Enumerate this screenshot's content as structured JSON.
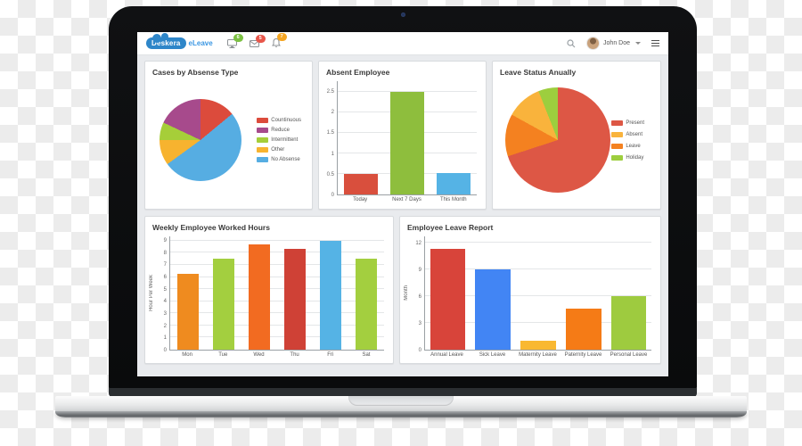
{
  "header": {
    "brand": "Deskera",
    "product": "eLeave",
    "badges": {
      "messages": "6",
      "mail": "5",
      "notifications": "7"
    },
    "user_name": "John Doe"
  },
  "chart_data": [
    {
      "type": "pie",
      "title": "Cases by Absense Type",
      "legend_position": "right",
      "slices_clockwise_from_top": [
        {
          "label": "Countinuous",
          "value": 14,
          "color": "#dc4b3c"
        },
        {
          "label": "No Absense",
          "value": 51,
          "color": "#56ade2"
        },
        {
          "label": "Other",
          "value": 10,
          "color": "#f7b32f"
        },
        {
          "label": "Intermittent",
          "value": 7,
          "color": "#a6ce39"
        },
        {
          "label": "Reduce",
          "value": 18,
          "color": "#a74a8c"
        }
      ],
      "legend_order": [
        "Countinuous",
        "Reduce",
        "Intermittent",
        "Other",
        "No Absense"
      ]
    },
    {
      "type": "bar",
      "title": "Absent Employee",
      "categories": [
        "Today",
        "Next 7 Days",
        "This Month"
      ],
      "values": [
        0.5,
        2.5,
        0.52
      ],
      "colors": [
        "#d94f3d",
        "#8ebe3d",
        "#55b3e5"
      ],
      "yticks": [
        0,
        0.5,
        1,
        1.5,
        2,
        2.5
      ],
      "ylim": [
        0,
        2.75
      ],
      "ylabel": "",
      "grid": true
    },
    {
      "type": "pie",
      "title": "Leave Status Anually",
      "legend_position": "right",
      "slices_clockwise_from_top": [
        {
          "label": "Present",
          "value": 70,
          "color": "#dd5745"
        },
        {
          "label": "Leave",
          "value": 13,
          "color": "#f48120"
        },
        {
          "label": "Absent",
          "value": 11,
          "color": "#f9b33c"
        },
        {
          "label": "Holiday",
          "value": 6,
          "color": "#9dce3e"
        }
      ],
      "legend_order": [
        "Present",
        "Absent",
        "Leave",
        "Holiday"
      ]
    },
    {
      "type": "bar",
      "title": "Weekly Employee Worked Hours",
      "categories": [
        "Mon",
        "Tue",
        "Wed",
        "Thu",
        "Fri",
        "Sat"
      ],
      "values": [
        6.3,
        7.5,
        8.7,
        8.3,
        9,
        7.5
      ],
      "colors": [
        "#ef8b1f",
        "#a3cf3f",
        "#f26b21",
        "#cf4136",
        "#55b3e5",
        "#a3cf3f"
      ],
      "yticks": [
        0,
        1,
        2,
        3,
        4,
        5,
        6,
        7,
        8,
        9
      ],
      "ylim": [
        0,
        9.4
      ],
      "ylabel": "Hour Per Week",
      "grid": true
    },
    {
      "type": "bar",
      "title": "Employee Leave Report",
      "categories": [
        "Annual Leave",
        "Sick Leave",
        "Maternity Leave",
        "Paternity Leave",
        "Personal Leave"
      ],
      "values": [
        11.3,
        9,
        1,
        4.6,
        6
      ],
      "colors": [
        "#d8443a",
        "#4285f4",
        "#f9b831",
        "#f57b16",
        "#9ecb3f"
      ],
      "yticks": [
        0,
        3,
        6,
        9,
        12
      ],
      "ylim": [
        0,
        12.8
      ],
      "ylabel": "Month",
      "grid": true
    }
  ]
}
